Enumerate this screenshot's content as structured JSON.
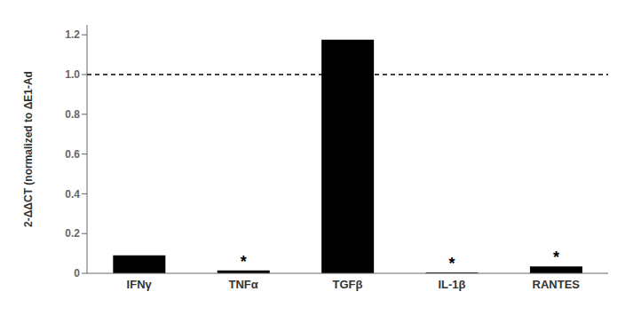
{
  "chart_data": {
    "type": "bar",
    "categories": [
      "IFNγ",
      "TNFα",
      "TGFβ",
      "IL-1β",
      "RANTES"
    ],
    "values": [
      0.09,
      0.015,
      1.175,
      0.005,
      0.035
    ],
    "bar_annotations": [
      null,
      "*",
      null,
      "*",
      "*"
    ],
    "color": "#000000",
    "ylabel": "2-ΔΔCT (normalized to ΔE1-Ad",
    "ylim": [
      0,
      1.25
    ],
    "yticks": [
      0,
      0.2,
      0.4,
      0.6,
      0.8,
      {
        "value": 1.0,
        "label": "1.0"
      },
      1.2
    ],
    "hline_y": 1.0,
    "grid": false
  }
}
